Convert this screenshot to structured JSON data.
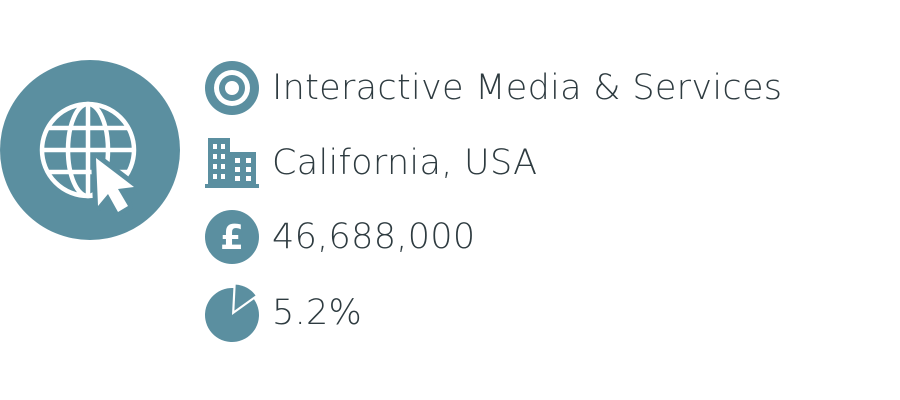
{
  "colors": {
    "accent": "#5b8fa0",
    "text": "#2e3b40",
    "background": "#ffffff"
  },
  "logo": {
    "icon": "globe-with-cursor-icon"
  },
  "facts": {
    "industry": {
      "icon": "target-icon",
      "text": "Interactive Media & Services"
    },
    "location": {
      "icon": "office-building-icon",
      "text": "California, USA"
    },
    "value": {
      "icon": "pound-sterling-icon",
      "text": "46,688,000"
    },
    "share": {
      "icon": "pie-chart-icon",
      "text": "5.2%",
      "fraction": 0.052
    }
  }
}
